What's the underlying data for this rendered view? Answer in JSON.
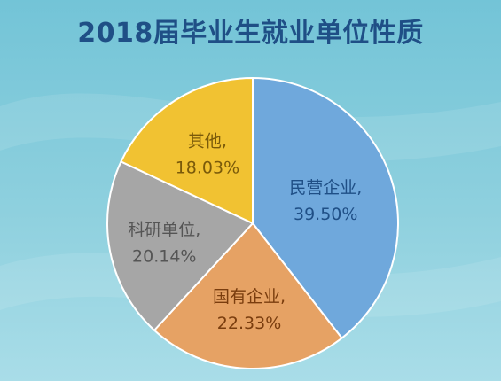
{
  "chart_data": {
    "type": "pie",
    "title": "2018届毕业生就业单位性质",
    "categories": [
      "民营企业,",
      "国有企业,",
      "科研单位,",
      "其他,"
    ],
    "values": [
      39.5,
      22.33,
      20.14,
      18.03
    ],
    "value_labels": [
      "39.50%",
      "22.33%",
      "20.14%",
      "18.03%"
    ],
    "colors": [
      "#6fa8dc",
      "#e6a264",
      "#a6a6a6",
      "#f1c232"
    ],
    "label_colors": [
      "#1f4f86",
      "#7a3d0e",
      "#555555",
      "#7a5a0a"
    ],
    "start": "top, clockwise",
    "legend": "labels on slices"
  },
  "colors": {
    "title": "#1f4f86",
    "background_top": "#73c4d7",
    "background_bottom": "#a9dde8"
  }
}
